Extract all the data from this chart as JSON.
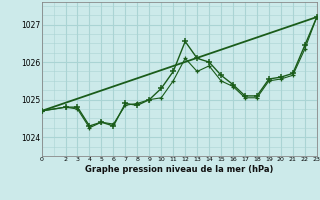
{
  "title": "Graphe pression niveau de la mer (hPa)",
  "background_color": "#cceaea",
  "grid_color": "#aad4d4",
  "line_color": "#1a5c1a",
  "ylim": [
    1023.5,
    1027.6
  ],
  "xlim": [
    0,
    23
  ],
  "yticks": [
    1024,
    1025,
    1026,
    1027
  ],
  "xticks": [
    0,
    2,
    3,
    4,
    5,
    6,
    7,
    8,
    9,
    10,
    11,
    12,
    13,
    14,
    15,
    16,
    17,
    18,
    19,
    20,
    21,
    22,
    23
  ],
  "trend_x": [
    0,
    23
  ],
  "trend_y": [
    1024.7,
    1027.2
  ],
  "series1_x": [
    0,
    2,
    3,
    4,
    5,
    6,
    7,
    8,
    9,
    10,
    11,
    12,
    13,
    14,
    15,
    16,
    17,
    18,
    19,
    20,
    21,
    22,
    23
  ],
  "series1_y": [
    1024.7,
    1024.8,
    1024.8,
    1024.3,
    1024.4,
    1024.3,
    1024.9,
    1024.85,
    1025.0,
    1025.3,
    1025.75,
    1026.55,
    1026.1,
    1026.0,
    1025.65,
    1025.4,
    1025.1,
    1025.1,
    1025.55,
    1025.6,
    1025.7,
    1026.45,
    1027.2
  ],
  "series2_x": [
    0,
    2,
    3,
    4,
    5,
    6,
    7,
    8,
    9,
    10,
    11,
    12,
    13,
    14,
    15,
    16,
    17,
    18,
    19,
    20,
    21,
    22,
    23
  ],
  "series2_y": [
    1024.7,
    1024.8,
    1024.75,
    1024.25,
    1024.4,
    1024.35,
    1024.85,
    1024.9,
    1025.0,
    1025.05,
    1025.5,
    1026.1,
    1025.75,
    1025.9,
    1025.5,
    1025.35,
    1025.05,
    1025.05,
    1025.5,
    1025.55,
    1025.65,
    1026.35,
    1027.2
  ]
}
